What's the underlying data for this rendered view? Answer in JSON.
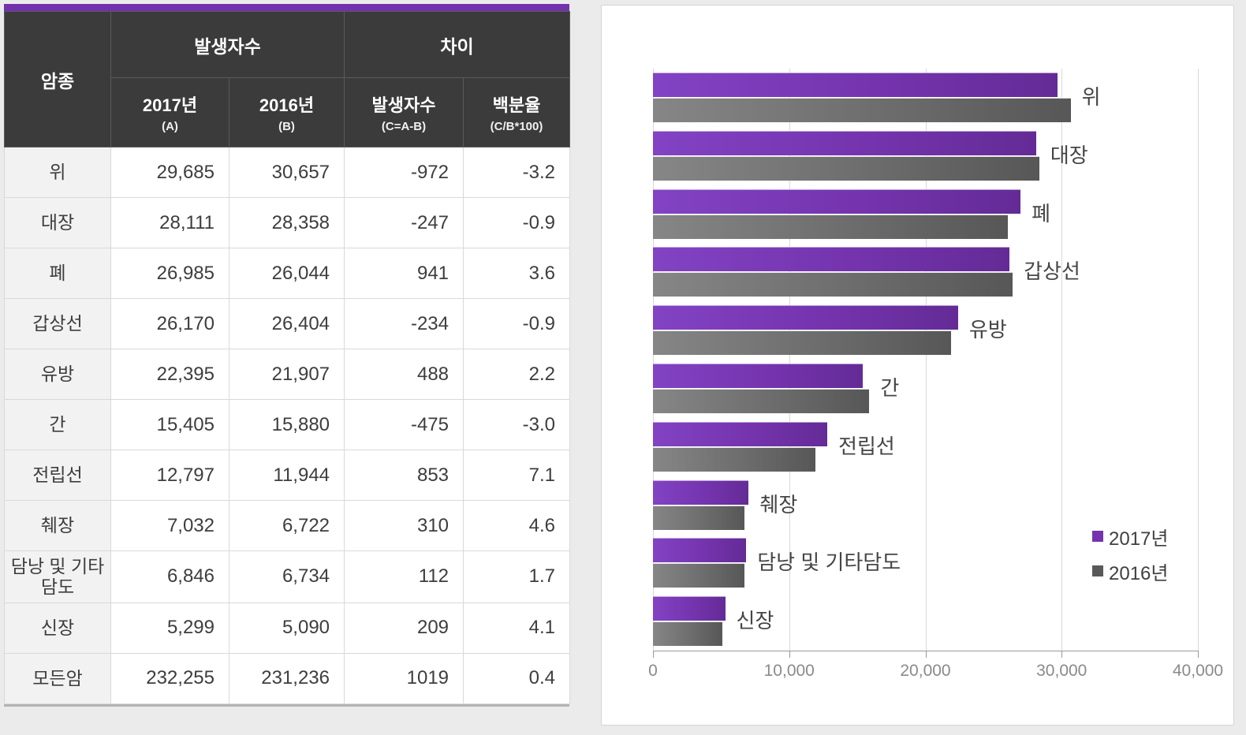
{
  "page": {
    "background_color": "#ebebeb",
    "accent_color": "#7331ad",
    "header_bg_color": "#3b3b3b"
  },
  "table": {
    "corner_header": "암종",
    "groups": [
      {
        "label": "발생자수",
        "columns": [
          {
            "label": "2017년",
            "note": "(A)"
          },
          {
            "label": "2016년",
            "note": "(B)"
          }
        ]
      },
      {
        "label": "차이",
        "columns": [
          {
            "label": "발생자수",
            "note": "(C=A-B)"
          },
          {
            "label": "백분율",
            "note": "(C/B*100)"
          }
        ]
      }
    ],
    "rows": [
      {
        "label": "위",
        "values": [
          "29,685",
          "30,657",
          "-972",
          "-3.2"
        ]
      },
      {
        "label": "대장",
        "values": [
          "28,111",
          "28,358",
          "-247",
          "-0.9"
        ]
      },
      {
        "label": "폐",
        "values": [
          "26,985",
          "26,044",
          "941",
          "3.6"
        ]
      },
      {
        "label": "갑상선",
        "values": [
          "26,170",
          "26,404",
          "-234",
          "-0.9"
        ]
      },
      {
        "label": "유방",
        "values": [
          "22,395",
          "21,907",
          "488",
          "2.2"
        ]
      },
      {
        "label": "간",
        "values": [
          "15,405",
          "15,880",
          "-475",
          "-3.0"
        ]
      },
      {
        "label": "전립선",
        "values": [
          "12,797",
          "11,944",
          "853",
          "7.1"
        ]
      },
      {
        "label": "췌장",
        "values": [
          "7,032",
          "6,722",
          "310",
          "4.6"
        ]
      },
      {
        "label": "담낭 및 기타담도",
        "values": [
          "6,846",
          "6,734",
          "112",
          "1.7"
        ]
      },
      {
        "label": "신장",
        "values": [
          "5,299",
          "5,090",
          "209",
          "4.1"
        ]
      },
      {
        "label": "모든암",
        "values": [
          "232,255",
          "231,236",
          "1019",
          "0.4"
        ]
      }
    ]
  },
  "chart_data": {
    "type": "bar",
    "orientation": "horizontal",
    "categories": [
      "위",
      "대장",
      "폐",
      "갑상선",
      "유방",
      "간",
      "전립선",
      "췌장",
      "담낭 및 기타담도",
      "신장"
    ],
    "series": [
      {
        "name": "2017년",
        "color": "#7534ae",
        "values": [
          29685,
          28111,
          26985,
          26170,
          22395,
          15405,
          12797,
          7032,
          6846,
          5299
        ]
      },
      {
        "name": "2016년",
        "color": "#595959",
        "values": [
          30657,
          28358,
          26044,
          26404,
          21907,
          15880,
          11944,
          6722,
          6734,
          5090
        ]
      }
    ],
    "xlim": [
      0,
      40000
    ],
    "x_ticks": [
      "0",
      "10,000",
      "20,000",
      "30,000",
      "40,000"
    ],
    "grid": "vertical",
    "legend_position": "right-lower",
    "title": "",
    "xlabel": "",
    "ylabel": ""
  }
}
